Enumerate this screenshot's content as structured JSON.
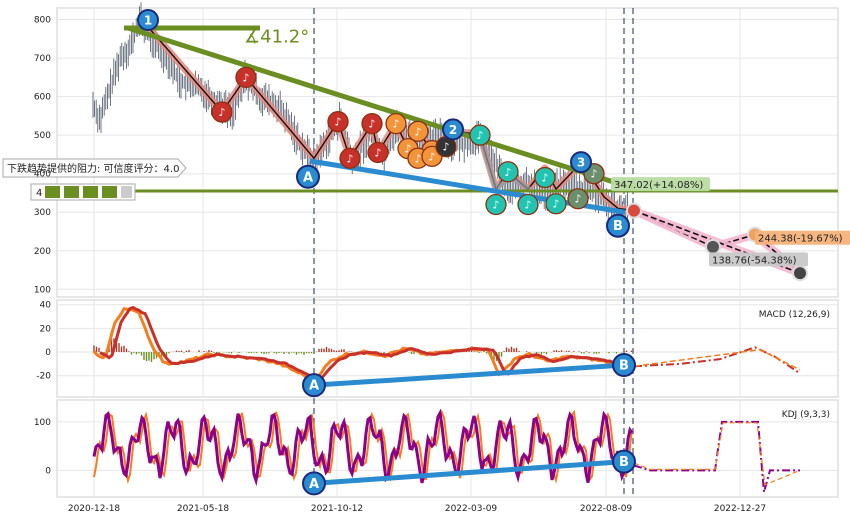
{
  "chart_data": {
    "type": "line",
    "x_ticks": [
      "2020-12-18",
      "2021-05-18",
      "2021-10-12",
      "2022-03-09",
      "2022-08-09",
      "2022-12-27"
    ],
    "panels": {
      "price": {
        "yticks": [
          100,
          200,
          300,
          400,
          500,
          600,
          700,
          800
        ],
        "ylim": [
          80,
          830
        ],
        "angle_label": "∡41.2°",
        "resistance_label": "下跌趋势提供的阻力: 可信度评分：4.0",
        "rating_label": "4",
        "projection_labels": [
          {
            "text": "347.02(+14.08%)",
            "color": "#b9dca3"
          },
          {
            "text": "244.38(-19.67%)",
            "color": "#f5b27a"
          },
          {
            "text": "138.76(-54.38%)",
            "color": "#c8c8c8"
          }
        ],
        "wave_labels": [
          "1",
          "2",
          "3",
          "A",
          "B"
        ],
        "horizontal_level": 355
      },
      "macd": {
        "title": "MACD (12,26,9)",
        "yticks": [
          -20,
          0,
          20,
          40
        ],
        "ylim": [
          -38,
          44
        ],
        "markers": [
          "A",
          "B"
        ]
      },
      "kdj": {
        "title": "KDJ (9,3,3)",
        "yticks": [
          0,
          100
        ],
        "ylim": [
          -55,
          145
        ],
        "markers": [
          "A",
          "B"
        ]
      }
    },
    "colors": {
      "trend": "#6b8e23",
      "support": "#2a8bd0",
      "projection": "#f4b6cf",
      "macd_dif": "#f57c1f",
      "macd_dea": "#c8312a",
      "kdj_k": "#8b008b",
      "kdj_d": "#f57c1f"
    }
  }
}
